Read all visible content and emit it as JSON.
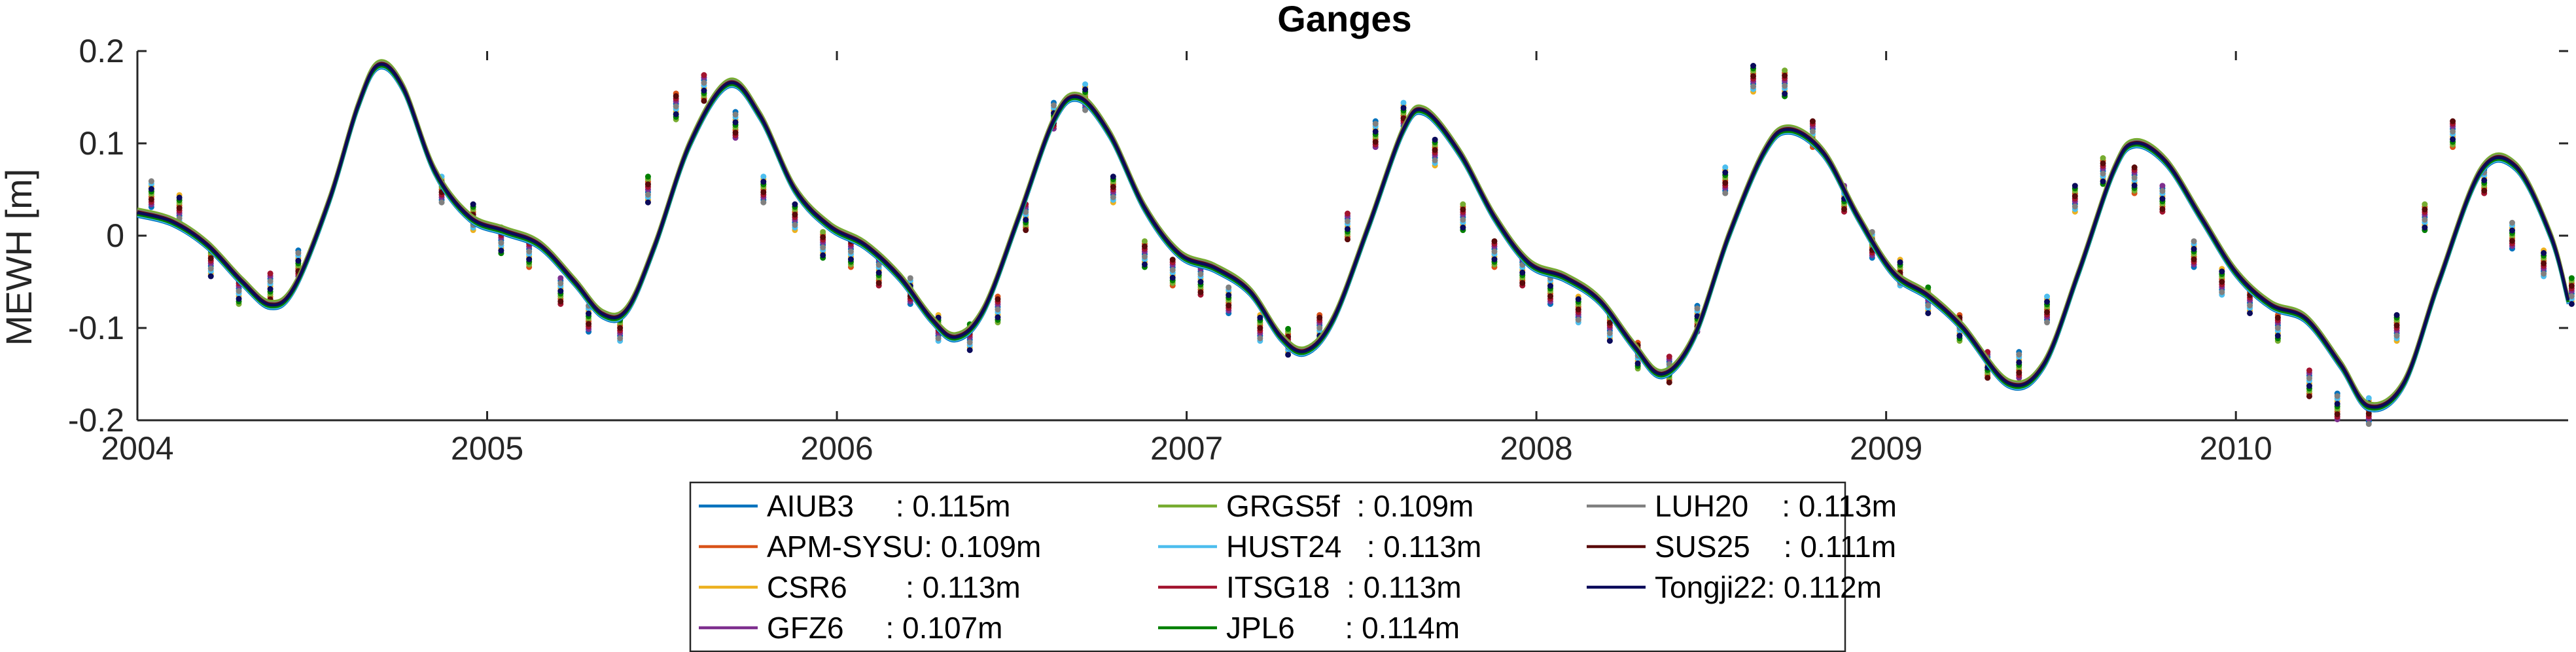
{
  "chart_data": {
    "type": "line",
    "title": "Ganges",
    "xlabel": "",
    "ylabel": "MEWH [m]",
    "xlim": [
      2004.0,
      2010.95
    ],
    "ylim": [
      -0.2,
      0.2
    ],
    "xticks": [
      2004,
      2005,
      2006,
      2007,
      2008,
      2009,
      2010
    ],
    "xtick_labels": [
      "2004",
      "2005",
      "2006",
      "2007",
      "2008",
      "2009",
      "2010"
    ],
    "yticks": [
      0.2,
      0.1,
      0,
      -0.1,
      -0.2
    ],
    "ytick_labels": [
      "0.2",
      "0.1",
      "0",
      "-0.1",
      "-0.2"
    ],
    "grid": false,
    "legend_position": "bottom-center",
    "series": [
      {
        "name": "AIUB3",
        "label": "AIUB3     : 0.115m",
        "color": "#0072BD",
        "offset": -0.004
      },
      {
        "name": "APM-SYSU",
        "label": "APM-SYSU: 0.109m",
        "color": "#D95319",
        "offset": 0.002
      },
      {
        "name": "CSR6",
        "label": "CSR6       : 0.113m",
        "color": "#EDB120",
        "offset": 0.003
      },
      {
        "name": "GFZ6",
        "label": "GFZ6     : 0.107m",
        "color": "#7E2F8E",
        "offset": 0.0
      },
      {
        "name": "GRGS5f",
        "label": "GRGS5f  : 0.109m",
        "color": "#77AC30",
        "offset": 0.004
      },
      {
        "name": "HUST24",
        "label": "HUST24   : 0.113m",
        "color": "#4DBEEE",
        "offset": -0.003
      },
      {
        "name": "ITSG18",
        "label": "ITSG18  : 0.113m",
        "color": "#A2142F",
        "offset": 0.001
      },
      {
        "name": "JPL6",
        "label": "JPL6      : 0.114m",
        "color": "#008000",
        "offset": -0.002
      },
      {
        "name": "LUH20",
        "label": "LUH20    : 0.113m",
        "color": "#808080",
        "offset": 0.002
      },
      {
        "name": "SUS25",
        "label": "SUS25    : 0.111m",
        "color": "#5A0A0A",
        "offset": 0.001
      },
      {
        "name": "Tongji22",
        "label": "Tongji22: 0.112m",
        "color": "#0A0A5A",
        "offset": 0.0
      }
    ],
    "base_curve": {
      "x": [
        2004.0,
        2004.1,
        2004.2,
        2004.3,
        2004.38,
        2004.45,
        2004.55,
        2004.63,
        2004.69,
        2004.76,
        2004.85,
        2004.95,
        2005.05,
        2005.15,
        2005.25,
        2005.33,
        2005.4,
        2005.48,
        2005.58,
        2005.69,
        2005.78,
        2005.88,
        2005.98,
        2006.08,
        2006.18,
        2006.27,
        2006.34,
        2006.42,
        2006.52,
        2006.62,
        2006.69,
        2006.78,
        2006.88,
        2006.98,
        2007.08,
        2007.18,
        2007.27,
        2007.34,
        2007.42,
        2007.52,
        2007.62,
        2007.68,
        2007.78,
        2007.88,
        2007.98,
        2008.08,
        2008.18,
        2008.28,
        2008.36,
        2008.45,
        2008.55,
        2008.65,
        2008.72,
        2008.82,
        2008.92,
        2009.02,
        2009.12,
        2009.22,
        2009.35,
        2009.45,
        2009.55,
        2009.65,
        2009.71,
        2009.8,
        2009.9,
        2010.0,
        2010.1,
        2010.2,
        2010.3,
        2010.38,
        2010.48,
        2010.58,
        2010.7,
        2010.8,
        2010.9,
        2010.95
      ],
      "y": [
        0.025,
        0.015,
        -0.01,
        -0.05,
        -0.075,
        -0.055,
        0.04,
        0.14,
        0.185,
        0.16,
        0.07,
        0.02,
        0.005,
        -0.01,
        -0.05,
        -0.085,
        -0.08,
        -0.01,
        0.1,
        0.165,
        0.13,
        0.05,
        0.01,
        -0.01,
        -0.045,
        -0.09,
        -0.11,
        -0.08,
        0.02,
        0.125,
        0.15,
        0.11,
        0.03,
        -0.02,
        -0.035,
        -0.06,
        -0.11,
        -0.125,
        -0.09,
        0.01,
        0.115,
        0.135,
        0.09,
        0.02,
        -0.03,
        -0.045,
        -0.07,
        -0.12,
        -0.15,
        -0.11,
        0.0,
        0.09,
        0.115,
        0.09,
        0.02,
        -0.04,
        -0.065,
        -0.1,
        -0.16,
        -0.14,
        -0.04,
        0.07,
        0.1,
        0.08,
        0.02,
        -0.04,
        -0.075,
        -0.09,
        -0.14,
        -0.185,
        -0.16,
        -0.05,
        0.07,
        0.075,
        0.0,
        -0.07
      ]
    },
    "monthly_points": {
      "colors": [
        "#0072BD",
        "#D95319",
        "#EDB120",
        "#7E2F8E",
        "#77AC30",
        "#4DBEEE",
        "#A2142F",
        "#008000",
        "#808080",
        "#5A0A0A",
        "#0A0A5A"
      ],
      "x": [
        2004.04,
        2004.12,
        2004.21,
        2004.29,
        2004.38,
        2004.46,
        2004.87,
        2004.96,
        2005.04,
        2005.12,
        2005.21,
        2005.29,
        2005.38,
        2005.46,
        2005.54,
        2005.62,
        2005.71,
        2005.79,
        2005.88,
        2005.96,
        2006.04,
        2006.12,
        2006.21,
        2006.29,
        2006.38,
        2006.46,
        2006.54,
        2006.62,
        2006.71,
        2006.79,
        2006.88,
        2006.96,
        2007.04,
        2007.12,
        2007.21,
        2007.29,
        2007.38,
        2007.46,
        2007.54,
        2007.62,
        2007.71,
        2007.79,
        2007.88,
        2007.96,
        2008.04,
        2008.12,
        2008.21,
        2008.29,
        2008.38,
        2008.46,
        2008.54,
        2008.62,
        2008.71,
        2008.79,
        2008.88,
        2008.96,
        2009.04,
        2009.12,
        2009.21,
        2009.29,
        2009.38,
        2009.46,
        2009.54,
        2009.62,
        2009.71,
        2009.79,
        2009.88,
        2009.96,
        2010.04,
        2010.12,
        2010.21,
        2010.29,
        2010.38,
        2010.46,
        2010.54,
        2010.62,
        2010.71,
        2010.79,
        2010.88,
        2010.96
      ],
      "y": [
        0.045,
        0.03,
        -0.03,
        -0.06,
        -0.055,
        -0.03,
        0.05,
        0.02,
        -0.005,
        -0.02,
        -0.06,
        -0.09,
        -0.1,
        0.05,
        0.14,
        0.16,
        0.12,
        0.05,
        0.02,
        -0.01,
        -0.02,
        -0.04,
        -0.06,
        -0.1,
        -0.11,
        -0.08,
        0.02,
        0.13,
        0.15,
        0.05,
        -0.02,
        -0.04,
        -0.05,
        -0.07,
        -0.1,
        -0.115,
        -0.1,
        0.01,
        0.11,
        0.13,
        0.09,
        0.02,
        -0.02,
        -0.04,
        -0.06,
        -0.08,
        -0.1,
        -0.13,
        -0.145,
        -0.09,
        0.06,
        0.17,
        0.165,
        0.11,
        0.04,
        -0.01,
        -0.04,
        -0.07,
        -0.1,
        -0.14,
        -0.14,
        -0.08,
        0.04,
        0.07,
        0.06,
        0.04,
        -0.02,
        -0.05,
        -0.07,
        -0.1,
        -0.16,
        -0.185,
        -0.19,
        -0.1,
        0.02,
        0.11,
        0.06,
        0.0,
        -0.03,
        -0.06
      ]
    }
  }
}
